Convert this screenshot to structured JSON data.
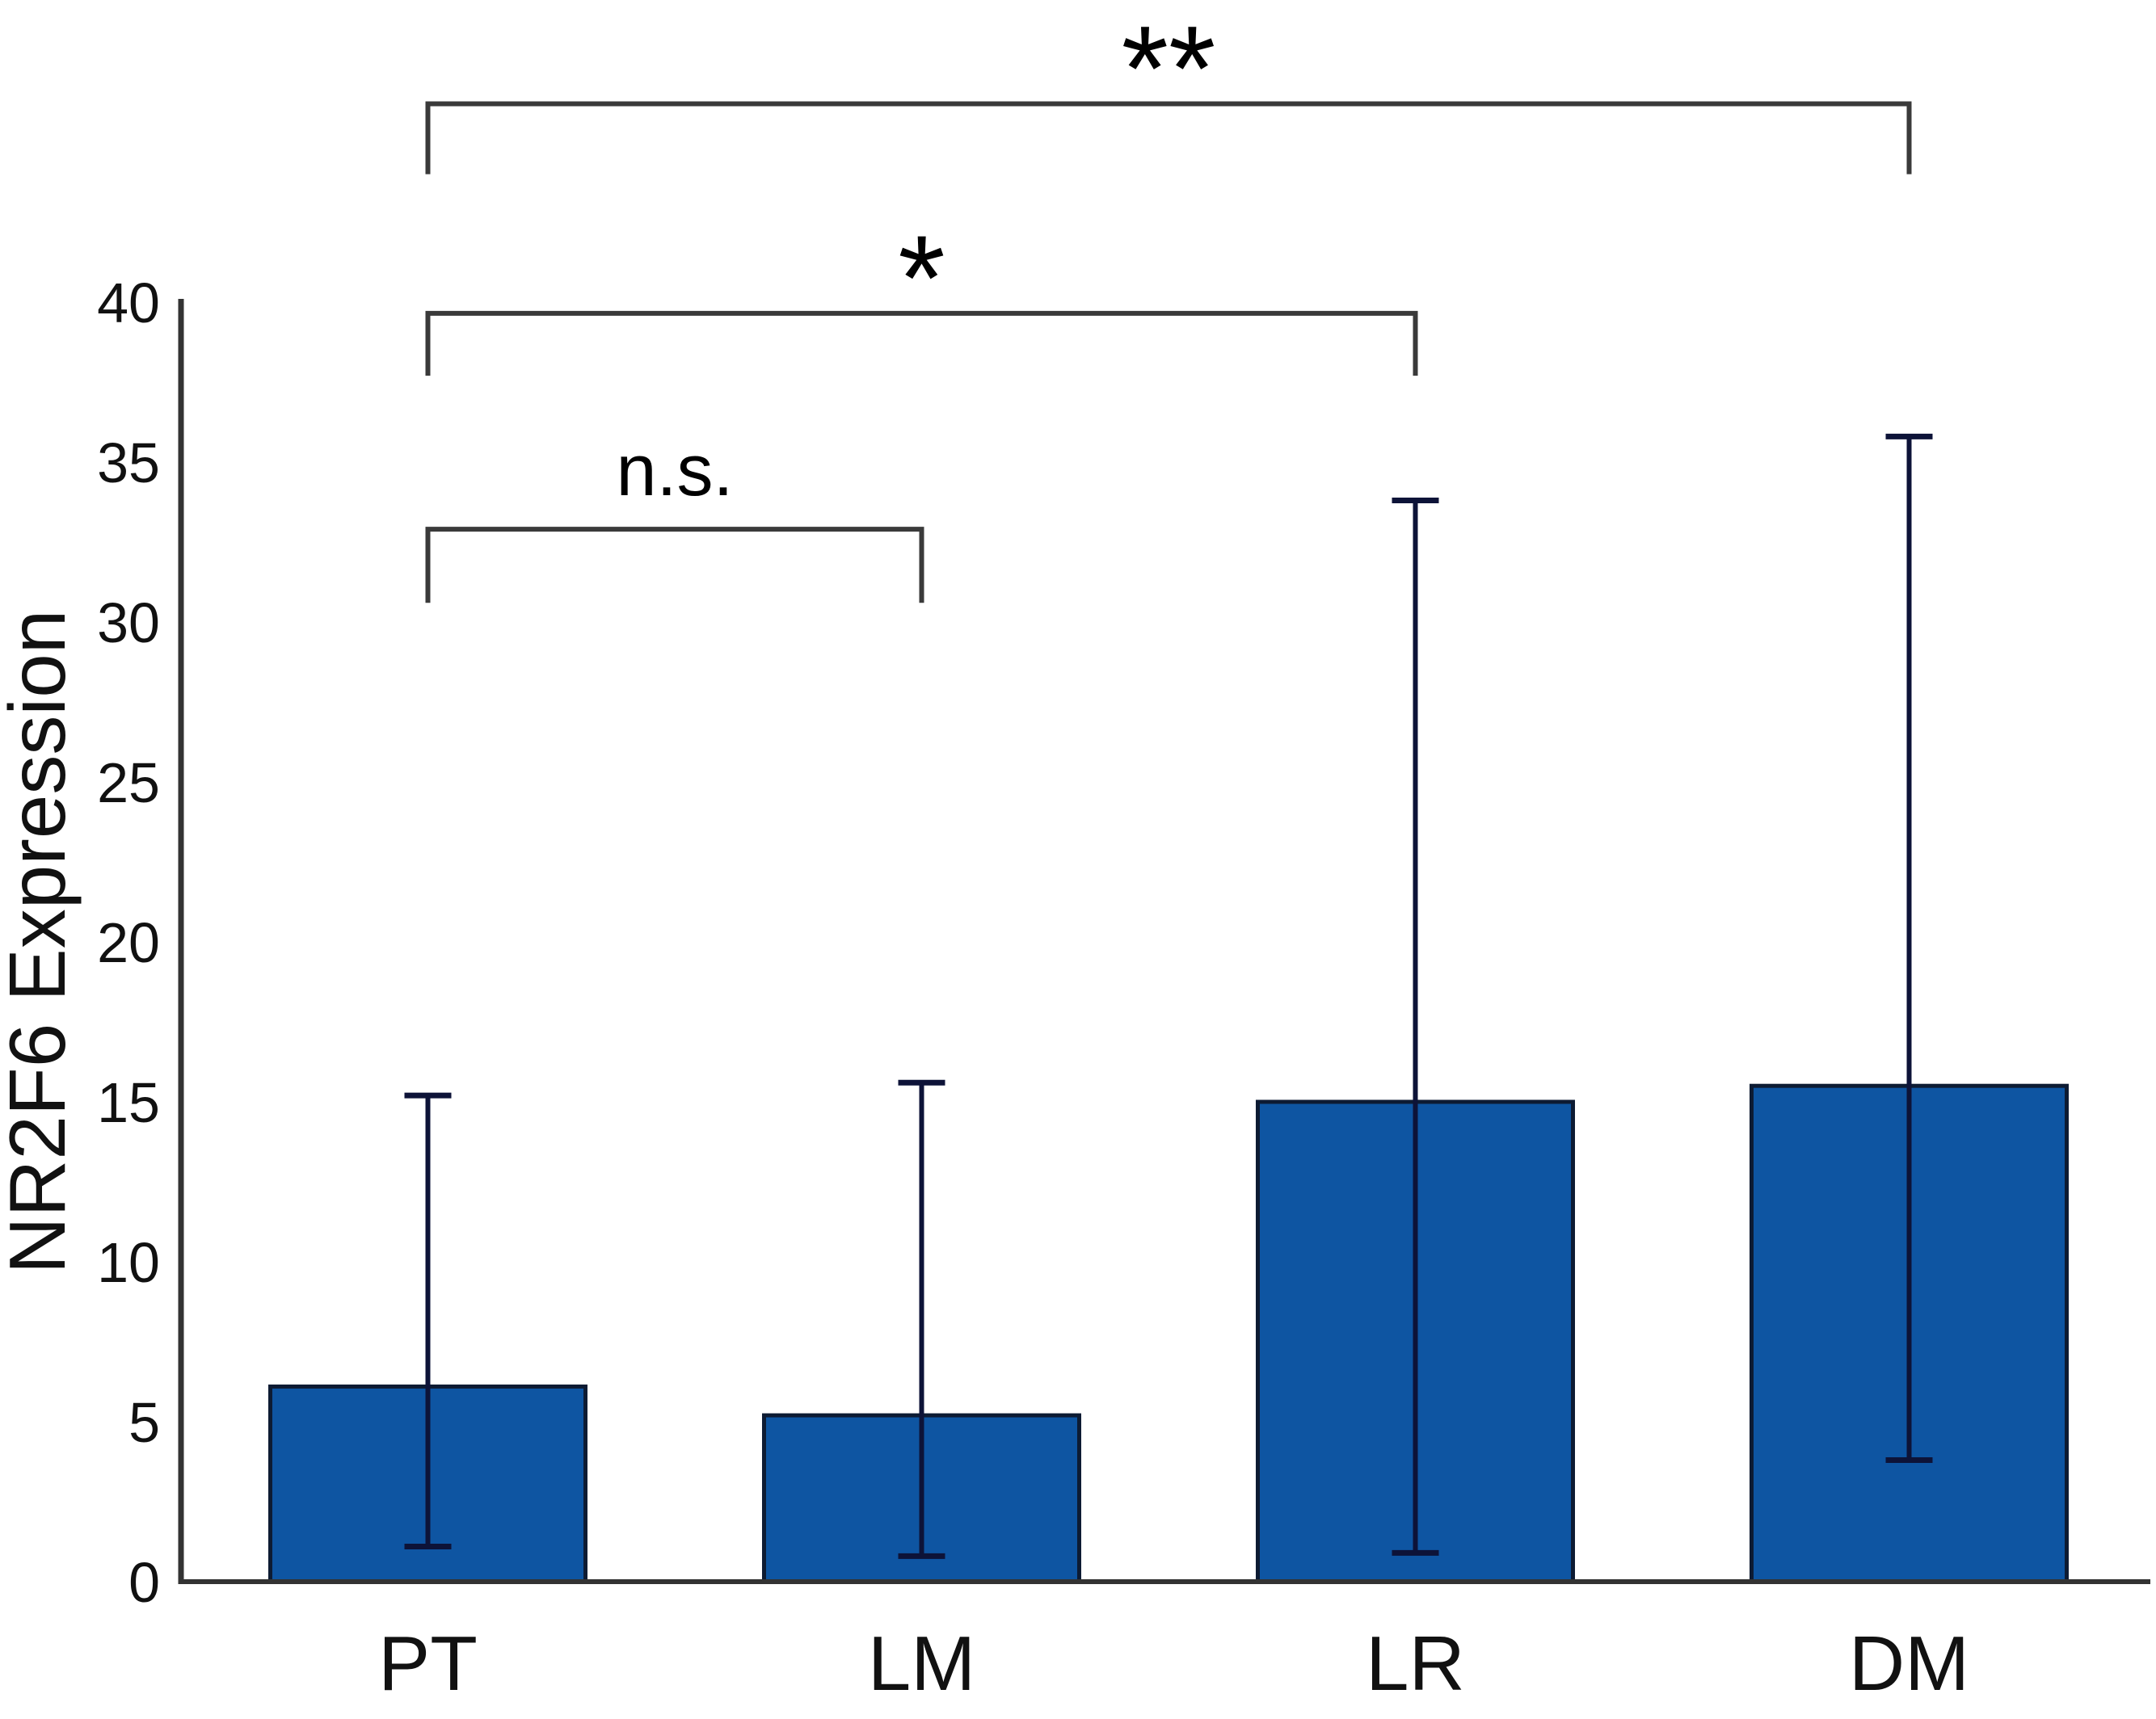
{
  "figure": {
    "background": "#ffffff"
  },
  "chart_data": {
    "type": "bar",
    "title": "",
    "xlabel": "",
    "ylabel": "NR2F6 Expression",
    "categories": [
      "PT",
      "LM",
      "LR",
      "DM"
    ],
    "values": [
      6.1,
      5.2,
      15.0,
      15.5
    ],
    "error_bars": {
      "low": [
        1.1,
        0.8,
        0.9,
        3.8
      ],
      "high": [
        15.2,
        15.6,
        33.8,
        35.8
      ]
    },
    "ylim": [
      0,
      40
    ],
    "yticks": [
      0,
      5,
      10,
      15,
      20,
      25,
      30,
      35,
      40
    ],
    "grid": false,
    "legend": "none",
    "bar_color": "#0E55A2",
    "bar_border_color": "#0D1B33",
    "error_bar_color": "#0D1338",
    "axis_color": "#333333",
    "bracket_color": "#3A3A3A",
    "text_color": "#111111",
    "significance": [
      {
        "from": "PT",
        "to": "LM",
        "from_index": 0,
        "to_index": 1,
        "label": "n.s.",
        "line_y": 32.9,
        "drop_to": 30.6
      },
      {
        "from": "PT",
        "to": "LR",
        "from_index": 0,
        "to_index": 2,
        "label": "*",
        "line_y": 39.65,
        "drop_to": 37.7
      },
      {
        "from": "PT",
        "to": "DM",
        "from_index": 0,
        "to_index": 3,
        "label": "**",
        "line_y": 46.2,
        "drop_to": 44.0
      }
    ]
  }
}
